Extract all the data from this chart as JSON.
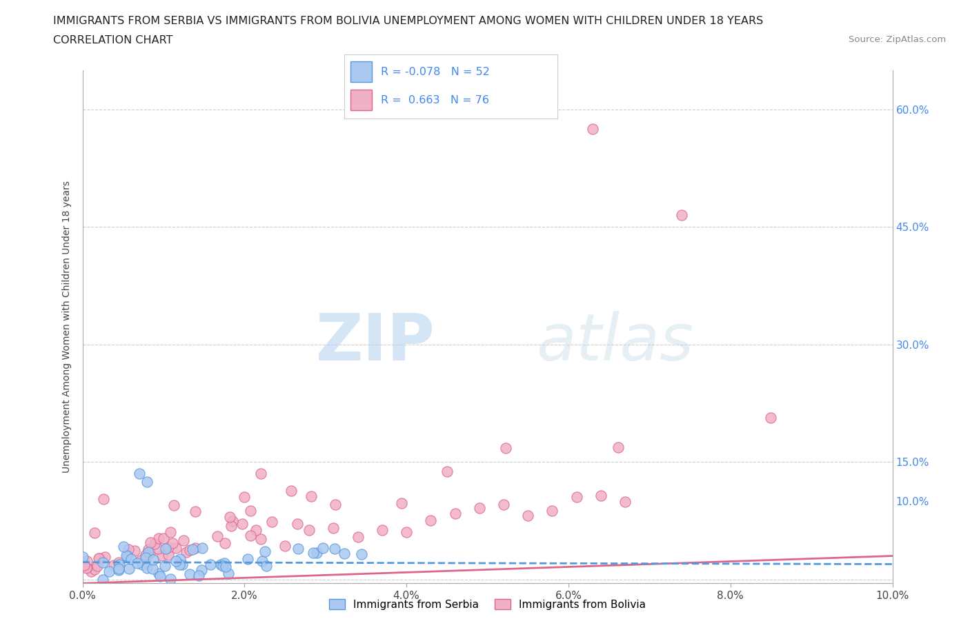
{
  "title_line1": "IMMIGRANTS FROM SERBIA VS IMMIGRANTS FROM BOLIVIA UNEMPLOYMENT AMONG WOMEN WITH CHILDREN UNDER 18 YEARS",
  "title_line2": "CORRELATION CHART",
  "source_text": "Source: ZipAtlas.com",
  "ylabel": "Unemployment Among Women with Children Under 18 years",
  "xlim": [
    0.0,
    0.1
  ],
  "ylim": [
    -0.005,
    0.65
  ],
  "xtick_labels": [
    "0.0%",
    "2.0%",
    "4.0%",
    "6.0%",
    "8.0%",
    "10.0%"
  ],
  "xtick_vals": [
    0.0,
    0.02,
    0.04,
    0.06,
    0.08,
    0.1
  ],
  "ytick_vals": [
    0.0,
    0.15,
    0.3,
    0.45,
    0.6
  ],
  "right_ytick_vals": [
    0.1,
    0.15,
    0.3,
    0.45,
    0.6
  ],
  "right_ytick_labels": [
    "10.0%",
    "15.0%",
    "30.0%",
    "45.0%",
    "60.0%"
  ],
  "serbia_color": "#aac8f0",
  "serbia_edge_color": "#5599dd",
  "bolivia_color": "#f0b0c8",
  "bolivia_edge_color": "#dd6688",
  "serbia_R": -0.078,
  "serbia_N": 52,
  "bolivia_R": 0.663,
  "bolivia_N": 76,
  "watermark_zip": "ZIP",
  "watermark_atlas": "atlas",
  "grid_color": "#cccccc",
  "right_axis_color": "#4488ee"
}
